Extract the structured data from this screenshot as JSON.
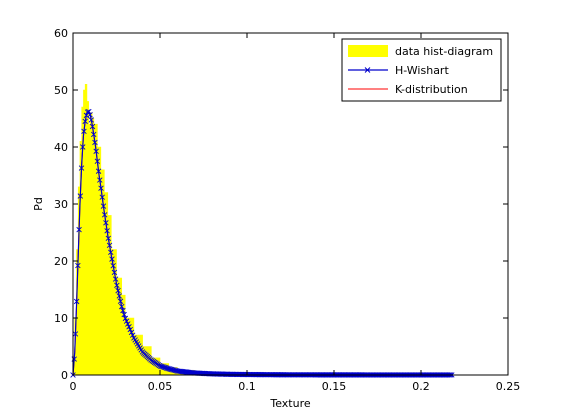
{
  "chart_data": {
    "type": "area",
    "xlabel": "Texture",
    "ylabel": "Pd",
    "xlim": [
      0,
      0.25
    ],
    "ylim": [
      0,
      60
    ],
    "xticks": [
      "0",
      "0.05",
      "0.1",
      "0.15",
      "0.2",
      "0.25"
    ],
    "yticks": [
      "0",
      "10",
      "20",
      "30",
      "40",
      "50",
      "60"
    ],
    "grid": false,
    "legend_position": "top-right",
    "legend": [
      "data hist-diagram",
      "H-Wishart",
      "K-distribution"
    ],
    "colors": {
      "hist": "#ffff00",
      "wishart": "#0000cc",
      "kdist": "#ff0000"
    },
    "series": [
      {
        "name": "data hist-diagram",
        "kind": "histogram",
        "x": [
          0.001,
          0.002,
          0.003,
          0.004,
          0.005,
          0.006,
          0.007,
          0.008,
          0.009,
          0.01,
          0.011,
          0.012,
          0.014,
          0.016,
          0.018,
          0.02,
          0.022,
          0.025,
          0.028,
          0.03,
          0.035,
          0.04,
          0.045,
          0.05,
          0.055,
          0.06,
          0.07,
          0.08,
          0.09,
          0.1,
          0.12,
          0.15,
          0.2,
          0.218
        ],
        "values": [
          3,
          10,
          22,
          33,
          41,
          47,
          50,
          51,
          48,
          44,
          46,
          45,
          44,
          40,
          36,
          32,
          28,
          22,
          17,
          14,
          10,
          7,
          5,
          3,
          2,
          1.3,
          0.8,
          0.5,
          0.3,
          0.2,
          0.1,
          0.05,
          0.02,
          0.01
        ]
      },
      {
        "name": "H-Wishart",
        "kind": "line-markers",
        "x": [
          0,
          0.001,
          0.002,
          0.003,
          0.004,
          0.005,
          0.006,
          0.007,
          0.008,
          0.009,
          0.01,
          0.011,
          0.012,
          0.013,
          0.014,
          0.015,
          0.016,
          0.018,
          0.02,
          0.022,
          0.025,
          0.028,
          0.03,
          0.035,
          0.04,
          0.045,
          0.05,
          0.055,
          0.06,
          0.07,
          0.08,
          0.09,
          0.1,
          0.12,
          0.15,
          0.2,
          0.218
        ],
        "values": [
          0,
          4,
          12,
          21,
          30,
          37,
          42,
          44.5,
          46,
          46.3,
          45.5,
          44,
          42,
          40,
          37.5,
          35,
          33,
          28.5,
          24.5,
          21,
          16,
          12,
          10,
          6.5,
          4,
          2.6,
          1.6,
          1.1,
          0.7,
          0.35,
          0.2,
          0.12,
          0.08,
          0.04,
          0.02,
          0.01,
          0.01
        ]
      },
      {
        "name": "K-distribution",
        "kind": "line",
        "x": [
          0,
          0.001,
          0.002,
          0.003,
          0.004,
          0.005,
          0.006,
          0.007,
          0.008,
          0.009,
          0.01,
          0.011,
          0.012,
          0.013,
          0.014,
          0.015,
          0.016,
          0.018,
          0.02,
          0.022,
          0.025,
          0.028,
          0.03,
          0.035,
          0.04,
          0.045,
          0.05,
          0.055,
          0.06,
          0.07,
          0.08,
          0.09,
          0.1,
          0.12,
          0.15,
          0.2,
          0.218
        ],
        "values": [
          0,
          4,
          12,
          21,
          30,
          37,
          42,
          44.5,
          46,
          46.3,
          45.5,
          44,
          42,
          40,
          37.5,
          35,
          33,
          28.5,
          24.5,
          21,
          16,
          12,
          10,
          6.5,
          4,
          2.6,
          1.6,
          1.1,
          0.7,
          0.35,
          0.2,
          0.12,
          0.08,
          0.04,
          0.02,
          0.01,
          0.01
        ]
      }
    ]
  }
}
